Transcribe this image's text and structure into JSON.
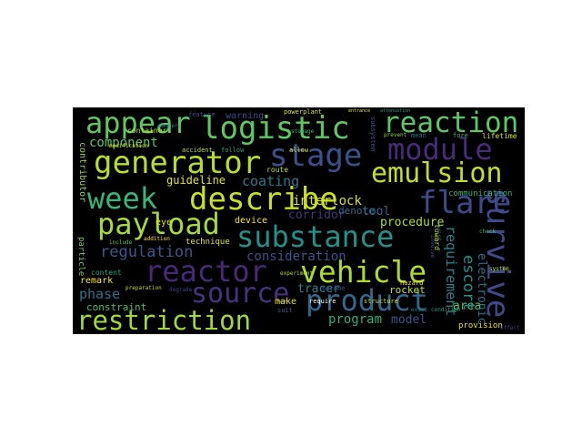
{
  "word_cloud": {
    "background": "#000000",
    "words": [
      {
        "text": "appear",
        "color": "#5dc863"
      },
      {
        "text": "logistic",
        "color": "#5dc863"
      },
      {
        "text": "reaction",
        "color": "#5dc863"
      },
      {
        "text": "stage",
        "color": "#3b518b"
      },
      {
        "text": "module",
        "color": "#472c7a"
      },
      {
        "text": "generator",
        "color": "#b5de2b"
      },
      {
        "text": "emulsion",
        "color": "#c0df25"
      },
      {
        "text": "week",
        "color": "#35b779"
      },
      {
        "text": "describe",
        "color": "#c8e020"
      },
      {
        "text": "flare",
        "color": "#3e4a89"
      },
      {
        "text": "payload",
        "color": "#a5db36"
      },
      {
        "text": "substance",
        "color": "#21918c"
      },
      {
        "text": "survive",
        "color": "#3e4989"
      },
      {
        "text": "reactor",
        "color": "#482878"
      },
      {
        "text": "vehicle",
        "color": "#addc30"
      },
      {
        "text": "source",
        "color": "#46327e"
      },
      {
        "text": "product",
        "color": "#31688e"
      },
      {
        "text": "restriction",
        "color": "#a0da39"
      },
      {
        "text": "component",
        "color": "#56c667"
      },
      {
        "text": "regulation",
        "color": "#38598c"
      },
      {
        "text": "coating",
        "color": "#2a788e"
      },
      {
        "text": "guideline",
        "color": "#e5e419"
      },
      {
        "text": "interlock",
        "color": "#d8e219"
      },
      {
        "text": "consideration",
        "color": "#3b528b"
      },
      {
        "text": "phase",
        "color": "#2c728e"
      },
      {
        "text": "tracer",
        "color": "#26828e"
      },
      {
        "text": "program",
        "color": "#2ab07f"
      },
      {
        "text": "model",
        "color": "#3a548c"
      },
      {
        "text": "area",
        "color": "#58c765"
      },
      {
        "text": "requirement",
        "color": "#25848e"
      },
      {
        "text": "escort",
        "color": "#20928c"
      },
      {
        "text": "electronic",
        "color": "#2d708e"
      },
      {
        "text": "procedure",
        "color": "#addc30"
      },
      {
        "text": "corridor",
        "color": "#46337e"
      },
      {
        "text": "tool",
        "color": "#31688e"
      },
      {
        "text": "contributor",
        "color": "#9bd93c"
      },
      {
        "text": "warning",
        "color": "#3e4c8a"
      },
      {
        "text": "container",
        "color": "#c2df23"
      },
      {
        "text": "constraint",
        "color": "#44bf70"
      },
      {
        "text": "remark",
        "color": "#fde725"
      },
      {
        "text": "rocket",
        "color": "#c5e021"
      },
      {
        "text": "device",
        "color": "#fde725"
      },
      {
        "text": "technique",
        "color": "#e2e418"
      },
      {
        "text": "denote",
        "color": "#2f6c8e"
      },
      {
        "text": "eye",
        "color": "#e5e419"
      },
      {
        "text": "make",
        "color": "#dde318"
      },
      {
        "text": "content",
        "color": "#21a685"
      },
      {
        "text": "communication",
        "color": "#35b779"
      },
      {
        "text": "provision",
        "color": "#e7e419"
      },
      {
        "text": "lifetime",
        "color": "#d5e21a"
      },
      {
        "text": "powerplant",
        "color": "#dde318"
      },
      {
        "text": "accident",
        "color": "#bddf26"
      },
      {
        "text": "route",
        "color": "#b8de29"
      },
      {
        "text": "toward",
        "color": "#c8e020"
      },
      {
        "text": "particle",
        "color": "#7ad151"
      },
      {
        "text": "system",
        "color": "#b5de2b"
      },
      {
        "text": "allow",
        "color": "#e2e418"
      },
      {
        "text": "suit",
        "color": "#38598c"
      },
      {
        "text": "fore",
        "color": "#37b878"
      },
      {
        "text": "mean",
        "color": "#2e6f8e"
      },
      {
        "text": "become",
        "color": "#38588c"
      },
      {
        "text": "feature",
        "color": "#3b528b"
      },
      {
        "text": "follow",
        "color": "#22a884"
      },
      {
        "text": "guard",
        "color": "#31668e"
      },
      {
        "text": "check",
        "color": "#3fbc73"
      },
      {
        "text": "require",
        "color": "#ffffff"
      },
      {
        "text": "structure",
        "color": "#d0e11c"
      },
      {
        "text": "addition",
        "color": "#fde725"
      },
      {
        "text": "involve",
        "color": "#38598c"
      },
      {
        "text": "modification",
        "color": "#efe51c"
      },
      {
        "text": "exist",
        "color": "#25838e"
      },
      {
        "text": "condition",
        "color": "#20a386"
      },
      {
        "text": "hazard",
        "color": "#fde725"
      },
      {
        "text": "include",
        "color": "#5ec962"
      },
      {
        "text": "subsystem",
        "color": "#3b528b"
      },
      {
        "text": "effect",
        "color": "#433e85"
      },
      {
        "text": "prevent",
        "color": "#8fd744"
      },
      {
        "text": "manner",
        "color": "#287c8e"
      },
      {
        "text": "experiment",
        "color": "#b5de2b"
      },
      {
        "text": "degrade",
        "color": "#404688"
      },
      {
        "text": "preparation",
        "color": "#bddf26"
      },
      {
        "text": "stowage",
        "color": "#2db27d"
      },
      {
        "text": "entrance",
        "color": "#e5e419"
      },
      {
        "text": "attenuation",
        "color": "#1f9e89"
      }
    ]
  }
}
